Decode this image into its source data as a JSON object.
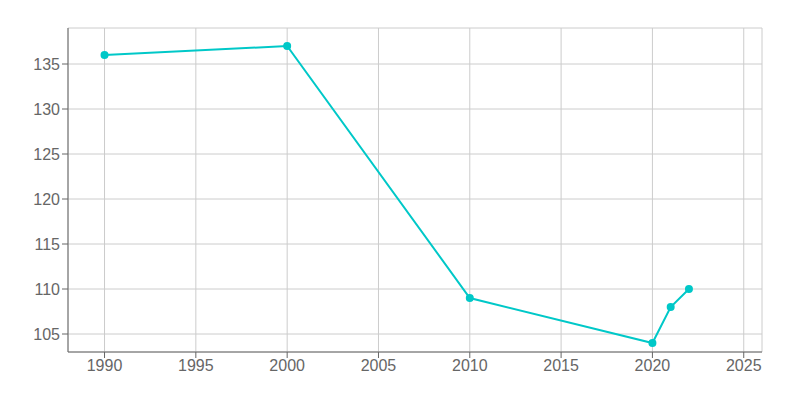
{
  "chart_data": {
    "type": "line",
    "x": [
      1990,
      2000,
      2010,
      2020,
      2021,
      2022
    ],
    "values": [
      136,
      137,
      109,
      104,
      108,
      110
    ],
    "color": "#00C8C8",
    "marker": "circle",
    "xlim": [
      1988,
      2026
    ],
    "ylim": [
      103,
      139
    ],
    "xticks": [
      1990,
      1995,
      2000,
      2005,
      2010,
      2015,
      2020,
      2025
    ],
    "yticks": [
      105,
      110,
      115,
      120,
      125,
      130,
      135
    ],
    "grid": true
  }
}
